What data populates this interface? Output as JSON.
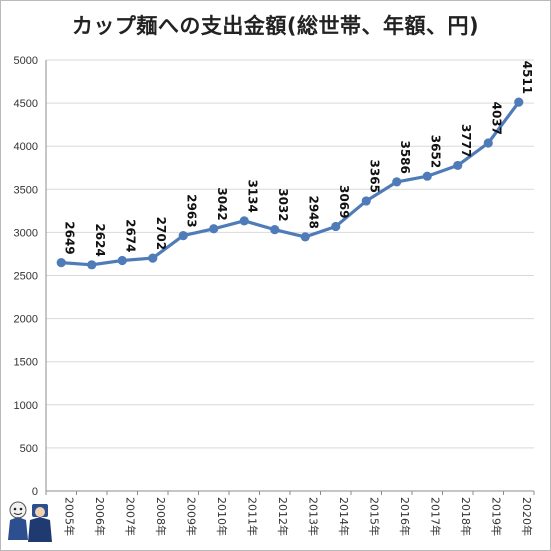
{
  "chart_data": {
    "type": "line",
    "title": "カップ麺への支出金額(総世帯、年額、円)",
    "xlabel": "",
    "ylabel": "",
    "categories": [
      "2005年",
      "2006年",
      "2007年",
      "2008年",
      "2009年",
      "2010年",
      "2011年",
      "2012年",
      "2013年",
      "2014年",
      "2015年",
      "2016年",
      "2017年",
      "2018年",
      "2019年",
      "2020年"
    ],
    "series": [
      {
        "values": [
          2649,
          2624,
          2674,
          2702,
          2963,
          3042,
          3134,
          3032,
          2948,
          3069,
          3365,
          3586,
          3652,
          3777,
          4037,
          4511
        ],
        "color": "#4f7cb9"
      }
    ],
    "ylim": [
      0,
      5000
    ],
    "yticks": [
      0,
      500,
      1000,
      1500,
      2000,
      2500,
      3000,
      3500,
      4000,
      4500,
      5000
    ],
    "data_labels": true,
    "grid": "horizontal",
    "legend": "none"
  }
}
